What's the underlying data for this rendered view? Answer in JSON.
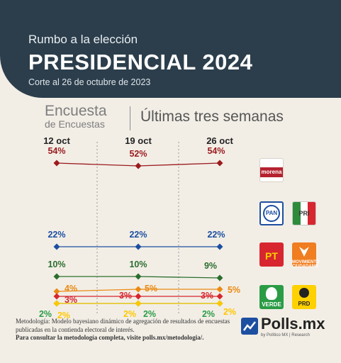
{
  "header": {
    "subtitle": "Rumbo a la elección",
    "title": "PRESIDENCIAL 2024",
    "cutoff": "Corte al 26 de octubre de 2023"
  },
  "survey": {
    "name_line1": "Encuesta",
    "name_line2": "de Encuestas",
    "period": "Últimas tres semanas"
  },
  "parties": {
    "morena": "morena",
    "pan": "PAN",
    "pri": "PRI",
    "pt": "PT",
    "mc": "MOVIMIENTO CIUDADANO",
    "verde": "VERDE",
    "prd": "PRD"
  },
  "colors": {
    "morena": "#9b1b1e",
    "pan_pri_prd": "#1d4fa0",
    "pvem_pt_morena": "#2b6e2f",
    "mc": "#ea8a12",
    "pt": "#d7262f",
    "pvem": "#2b9c46",
    "prd": "#ffc700"
  },
  "chart_data": {
    "type": "line",
    "categories": [
      "12 oct",
      "19 oct",
      "26 oct"
    ],
    "series": [
      {
        "key": "morena",
        "values": [
          54,
          52,
          54
        ],
        "labels": [
          "54%",
          "52%",
          "54%"
        ],
        "color": "#9b1b1e"
      },
      {
        "key": "pan_pri_prd",
        "values": [
          22,
          22,
          22
        ],
        "labels": [
          "22%",
          "22%",
          "22%"
        ],
        "color": "#1d4fa0"
      },
      {
        "key": "pvem_pt_morena",
        "values": [
          10,
          10,
          9
        ],
        "labels": [
          "10%",
          "10%",
          "9%"
        ],
        "color": "#2b6e2f"
      },
      {
        "key": "mc",
        "values": [
          4,
          5,
          5
        ],
        "labels": [
          "4%",
          "5%",
          "5%"
        ],
        "color": "#ea8a12"
      },
      {
        "key": "pt",
        "values": [
          3,
          3,
          3
        ],
        "labels": [
          "3%",
          "3%",
          "3%"
        ],
        "color": "#d7262f"
      },
      {
        "key": "pvem",
        "values": [
          2,
          2,
          2
        ],
        "labels": [
          "2%",
          "2%",
          "2%"
        ],
        "color": "#2b9c46"
      },
      {
        "key": "prd",
        "values": [
          2,
          2,
          2
        ],
        "labels": [
          "2%",
          "2%",
          "2%"
        ],
        "color": "#ffc700"
      }
    ],
    "grid": false
  },
  "footer": {
    "note": "Metodología: Modelo bayesiano dinámico de agregación de resultados de encuestas publicadas en la contienda electoral de interés.",
    "link": "Para consultar la metodología completa, visite polls.mx/metodologia/.",
    "brand": "Polls.mx",
    "brand_by": "by Político MX | Research"
  }
}
